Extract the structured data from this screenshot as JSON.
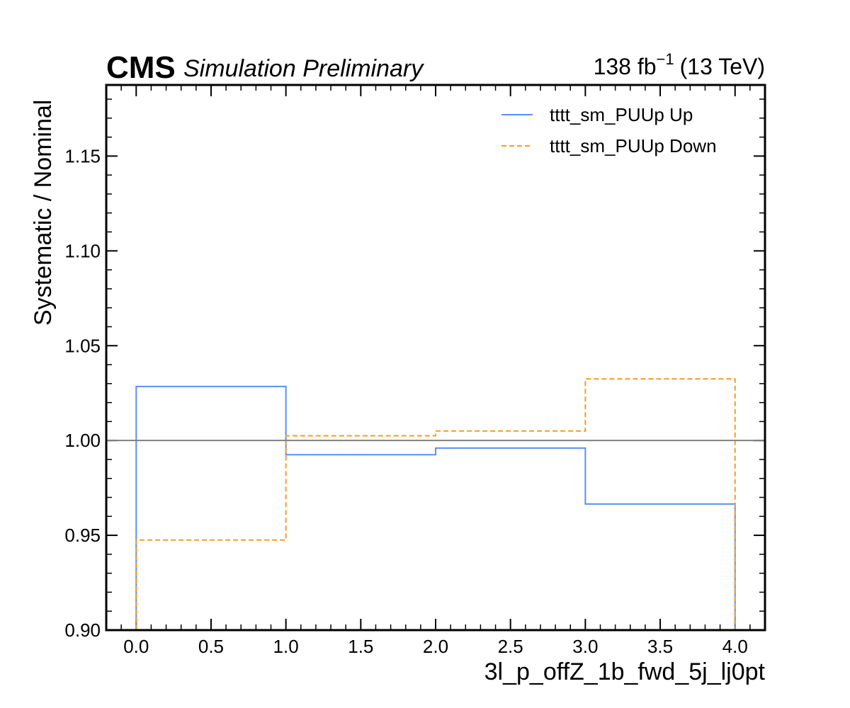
{
  "header": {
    "cms": "CMS",
    "subtitle": "Simulation Preliminary",
    "lumi_value": "138 fb",
    "lumi_exponent": "−1",
    "energy": "(13 TeV)"
  },
  "chart_data": {
    "type": "line",
    "style": "step",
    "xlabel": "3l_p_offZ_1b_fwd_5j_lj0pt",
    "ylabel": "Systematic / Nominal",
    "xlim": [
      -0.2,
      4.2
    ],
    "ylim": [
      0.9,
      1.1875
    ],
    "x_ticks": [
      0.0,
      0.5,
      1.0,
      1.5,
      2.0,
      2.5,
      3.0,
      3.5,
      4.0
    ],
    "x_tick_labels": [
      "0.0",
      "0.5",
      "1.0",
      "1.5",
      "2.0",
      "2.5",
      "3.0",
      "3.5",
      "4.0"
    ],
    "y_ticks": [
      0.9,
      0.95,
      1.0,
      1.05,
      1.1,
      1.15
    ],
    "y_tick_labels": [
      "0.90",
      "0.95",
      "1.00",
      "1.05",
      "1.10",
      "1.15"
    ],
    "bin_edges": [
      0,
      1,
      2,
      3,
      4
    ],
    "reference_line": 1.0,
    "legend_position": "top-right",
    "series": [
      {
        "name": "tttt_sm_PUUp Up",
        "values": [
          1.0285,
          0.9925,
          0.996,
          0.9665
        ],
        "color": "#5790fc",
        "dash": "solid"
      },
      {
        "name": "tttt_sm_PUUp Down",
        "values": [
          0.9475,
          1.0025,
          1.005,
          1.0325
        ],
        "color": "#f89c20",
        "dash": "dashed"
      }
    ]
  }
}
